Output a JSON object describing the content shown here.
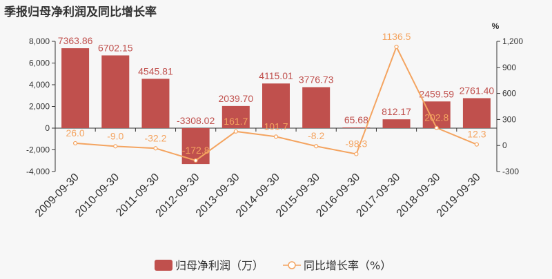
{
  "chart_data": {
    "type": "bar+line",
    "title": "季报归母净利润及同比增长率",
    "categories": [
      "2009-09-30",
      "2010-09-30",
      "2011-09-30",
      "2012-09-30",
      "2013-09-30",
      "2014-09-30",
      "2015-09-30",
      "2016-09-30",
      "2017-09-30",
      "2018-09-30",
      "2019-09-30"
    ],
    "series": [
      {
        "name": "归母净利润（万）",
        "type": "bar",
        "axis": "left",
        "values": [
          7363.86,
          6702.15,
          4545.81,
          -3308.02,
          2039.7,
          4115.01,
          3776.73,
          65.68,
          812.17,
          2459.59,
          2761.4
        ],
        "labels": [
          "7363.86",
          "6702.15",
          "4545.81",
          "-3308.02",
          "2039.70",
          "4115.01",
          "3776.73",
          "65.68",
          "812.17",
          "2459.59",
          "2761.40"
        ],
        "color": "#c0504d"
      },
      {
        "name": "同比增长率（%）",
        "type": "line",
        "axis": "right",
        "values": [
          26.0,
          -9.0,
          -32.2,
          -172.8,
          161.7,
          101.7,
          -8.2,
          -98.3,
          1136.5,
          202.8,
          12.3
        ],
        "labels": [
          "26.0",
          "-9.0",
          "-32.2",
          "-172.8",
          "161.7",
          "101.7",
          "-8.2",
          "-98.3",
          "1136.5",
          "202.8",
          "12.3"
        ],
        "color": "#f4a460"
      }
    ],
    "left_axis": {
      "ylim": [
        -4000,
        8000
      ],
      "ticks": [
        -4000,
        -2000,
        0,
        2000,
        4000,
        6000,
        8000
      ],
      "tick_labels": [
        "-4,000",
        "-2,000",
        "0",
        "2,000",
        "4,000",
        "6,000",
        "8,000"
      ]
    },
    "right_axis": {
      "unit": "%",
      "ylim": [
        -300,
        1200
      ],
      "ticks": [
        -300,
        0,
        300,
        600,
        900,
        1200
      ],
      "tick_labels": [
        "-300",
        "0",
        "300",
        "600",
        "900",
        "1,200"
      ]
    },
    "legend": {
      "position": "bottom-center"
    },
    "grid": false
  }
}
